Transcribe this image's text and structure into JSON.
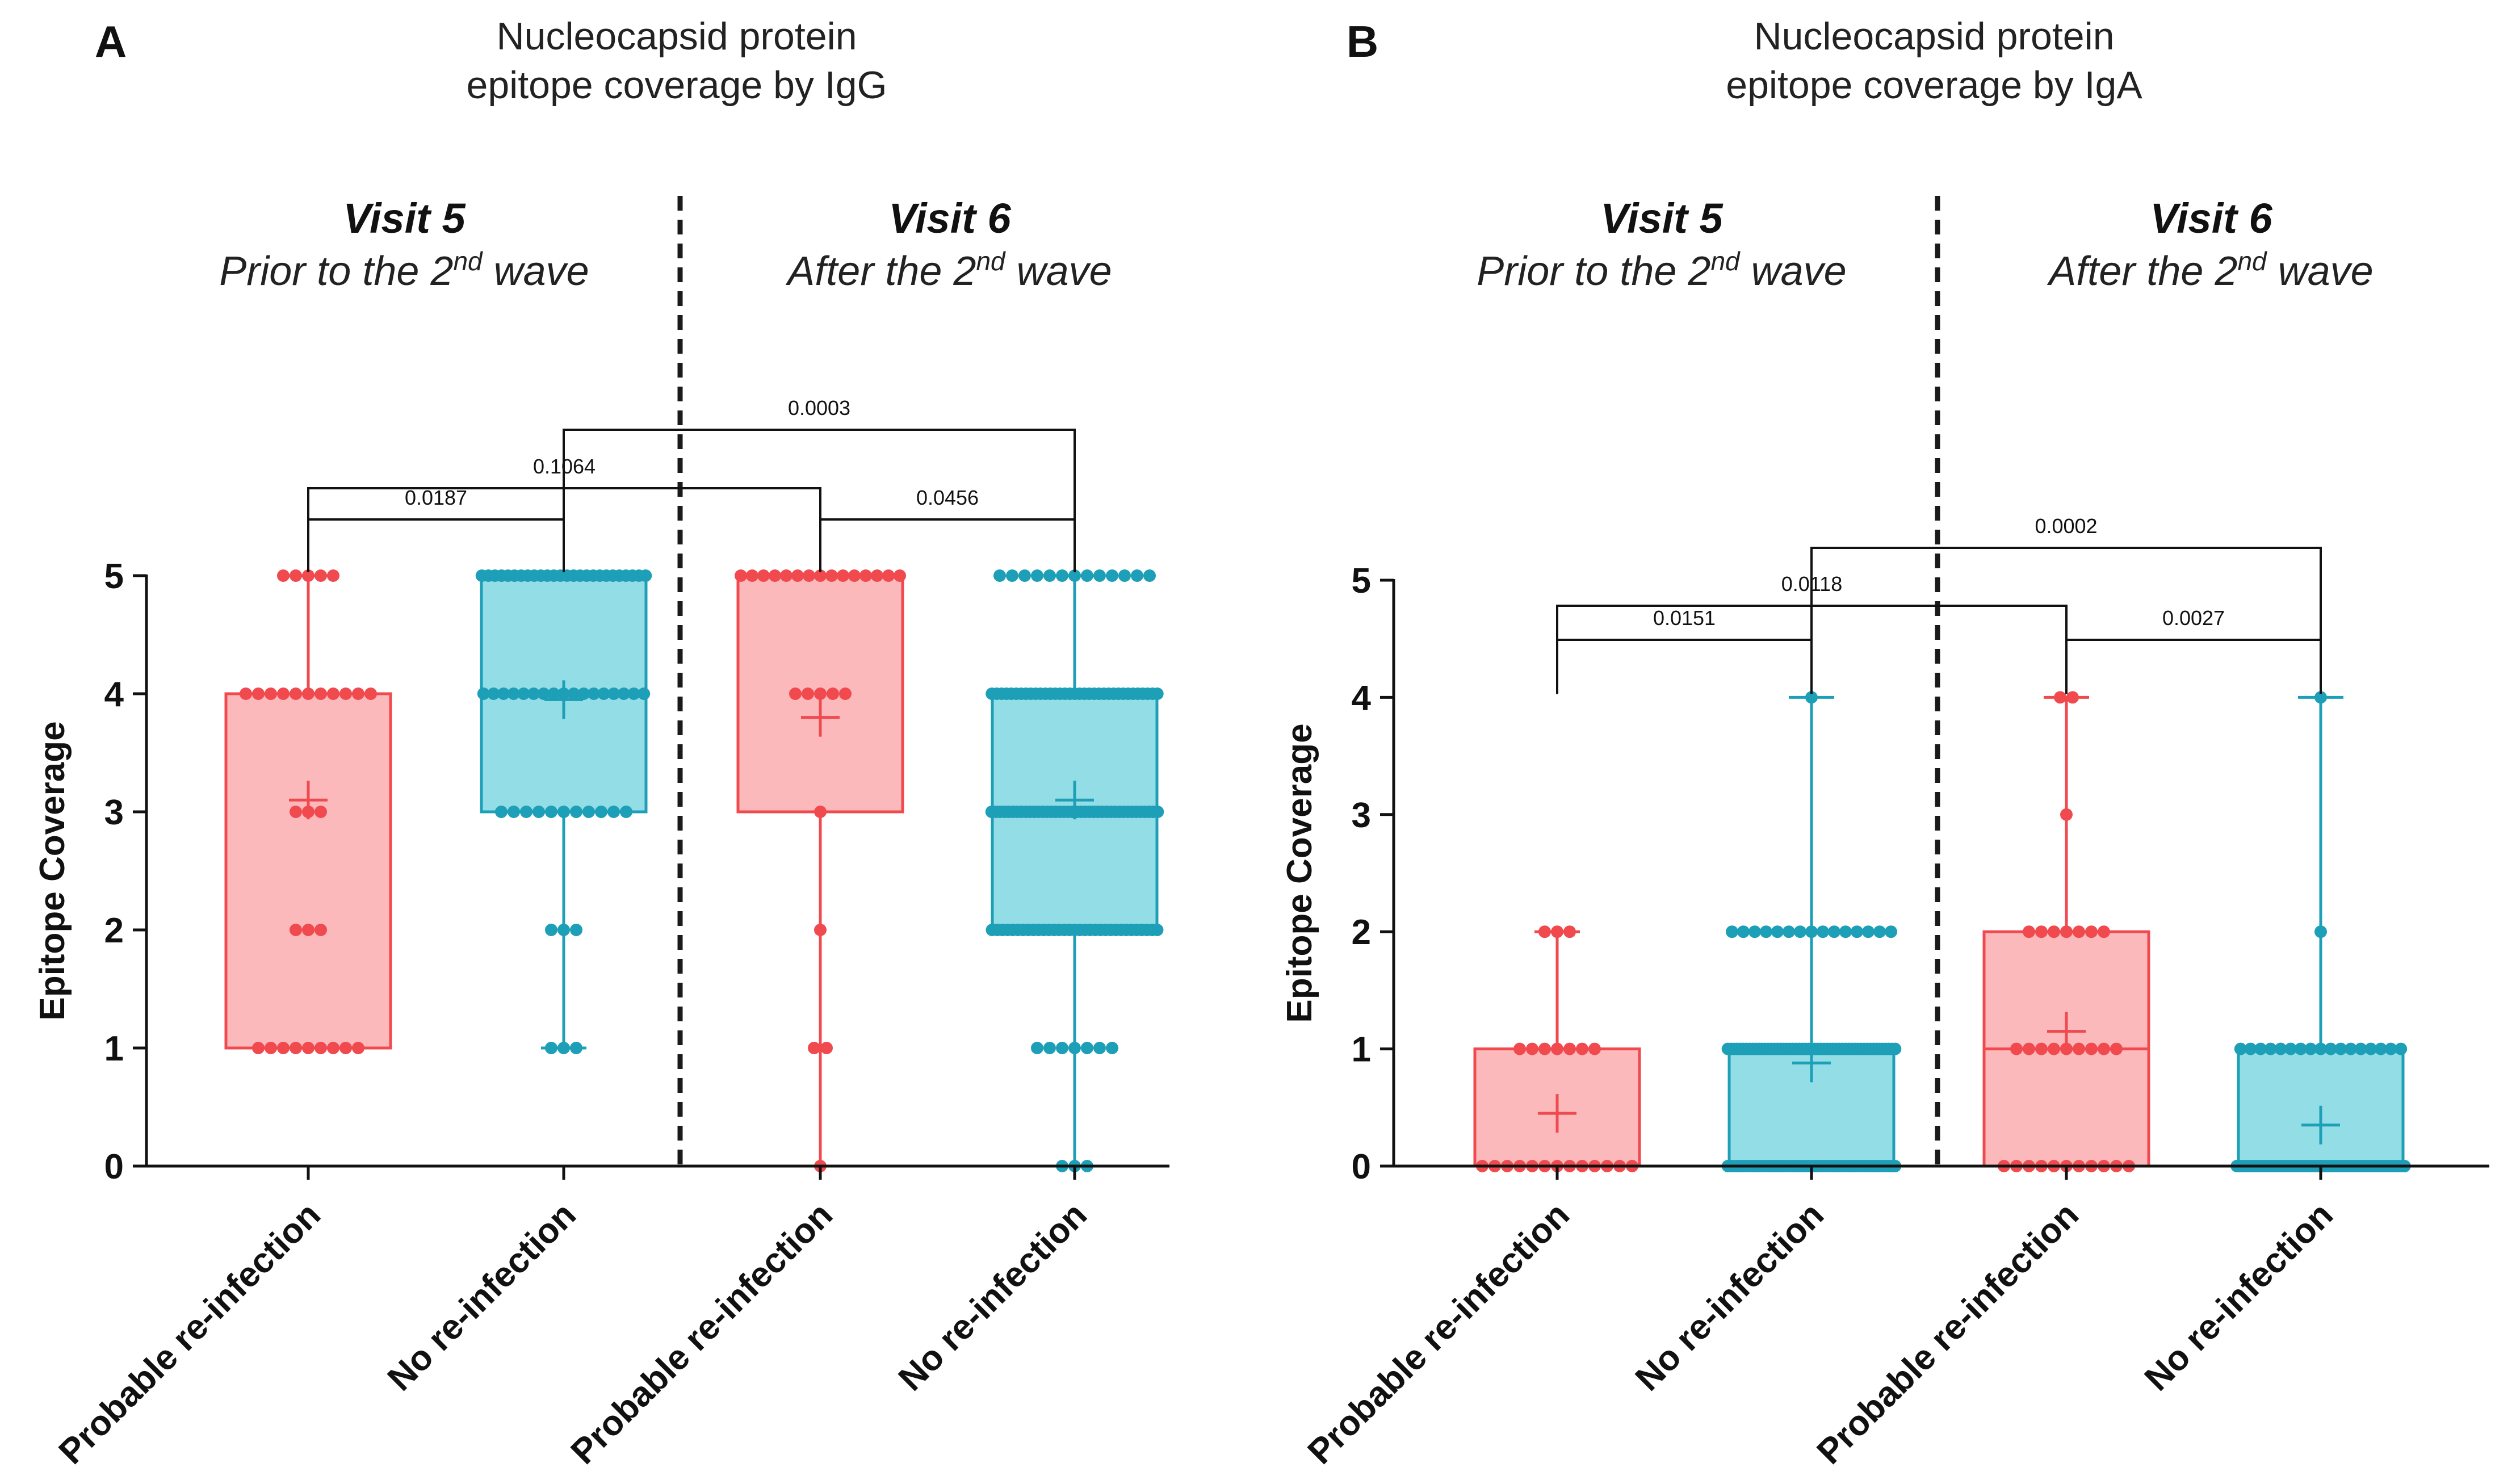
{
  "colors": {
    "probable": "#f04a4f",
    "probable_fill": "#fbb9bc",
    "none": "#1d9fb7",
    "none_fill": "#93dde6",
    "axis": "#111111"
  },
  "chart_data": [
    {
      "type": "box",
      "panel_letter": "A",
      "title_line1": "Nucleocapsid protein",
      "title_line2": "epitope coverage by IgG",
      "ylabel": "Epitope Coverage",
      "ylim": [
        0,
        5
      ],
      "yticks": [
        "0",
        "1",
        "2",
        "3",
        "4",
        "5"
      ],
      "groups": [
        {
          "title": "Visit 5",
          "subtitle_pre": "Prior to the 2",
          "subtitle_sup": "nd",
          "subtitle_post": " wave"
        },
        {
          "title": "Visit 6",
          "subtitle_pre": "After the 2",
          "subtitle_sup": "nd",
          "subtitle_post": " wave"
        }
      ],
      "categories": [
        "Probable re-infection",
        "No re-infection",
        "Probable re-infection",
        "No re-infection"
      ],
      "boxes": [
        {
          "series": "probable",
          "min": 1,
          "q1": 1,
          "median": 4,
          "q3": 4,
          "max": 5,
          "mean": 3.1,
          "points": [
            {
              "v": 5,
              "n": 5
            },
            {
              "v": 4,
              "n": 11
            },
            {
              "v": 3,
              "n": 3
            },
            {
              "v": 2,
              "n": 3
            },
            {
              "v": 1,
              "n": 9
            }
          ]
        },
        {
          "series": "none",
          "min": 1,
          "q1": 3,
          "median": 4,
          "q3": 5,
          "max": 5,
          "mean": 3.95,
          "points": [
            {
              "v": 5,
              "n": 26
            },
            {
              "v": 4,
              "n": 17
            },
            {
              "v": 3,
              "n": 11
            },
            {
              "v": 2,
              "n": 3
            },
            {
              "v": 1,
              "n": 3
            }
          ]
        },
        {
          "series": "probable",
          "min": 0,
          "q1": 3,
          "median": 5,
          "q3": 5,
          "max": 5,
          "mean": 3.8,
          "points": [
            {
              "v": 5,
              "n": 15
            },
            {
              "v": 4,
              "n": 5
            },
            {
              "v": 3,
              "n": 1
            },
            {
              "v": 2,
              "n": 1
            },
            {
              "v": 1,
              "n": 2
            },
            {
              "v": 0,
              "n": 1
            }
          ]
        },
        {
          "series": "none",
          "min": 0,
          "q1": 2,
          "median": 3,
          "q3": 4,
          "max": 5,
          "mean": 3.1,
          "points": [
            {
              "v": 5,
              "n": 13
            },
            {
              "v": 4,
              "n": 35
            },
            {
              "v": 3,
              "n": 40
            },
            {
              "v": 2,
              "n": 33
            },
            {
              "v": 1,
              "n": 7
            },
            {
              "v": 0,
              "n": 3
            }
          ]
        }
      ],
      "comparisons": [
        {
          "from": 0,
          "to": 1,
          "p": "0.0187"
        },
        {
          "from": 2,
          "to": 3,
          "p": "0.0456"
        },
        {
          "from": 0,
          "to": 2,
          "p": "0.1064"
        },
        {
          "from": 1,
          "to": 3,
          "p": "0.0003"
        }
      ]
    },
    {
      "type": "box",
      "panel_letter": "B",
      "title_line1": "Nucleocapsid protein",
      "title_line2": "epitope coverage by IgA",
      "ylabel": "Epitope Coverage",
      "ylim": [
        0,
        5
      ],
      "yticks": [
        "0",
        "1",
        "2",
        "3",
        "4",
        "5"
      ],
      "groups": [
        {
          "title": "Visit 5",
          "subtitle_pre": "Prior to the 2",
          "subtitle_sup": "nd",
          "subtitle_post": " wave"
        },
        {
          "title": "Visit 6",
          "subtitle_pre": "After the 2",
          "subtitle_sup": "nd",
          "subtitle_post": " wave"
        }
      ],
      "categories": [
        "Probable re-infection",
        "No re-infection",
        "Probable re-infection",
        "No re-infection"
      ],
      "boxes": [
        {
          "series": "probable",
          "min": 0,
          "q1": 0,
          "median": 0,
          "q3": 1,
          "max": 2,
          "mean": 0.45,
          "points": [
            {
              "v": 2,
              "n": 3
            },
            {
              "v": 1,
              "n": 7
            },
            {
              "v": 0,
              "n": 13
            }
          ]
        },
        {
          "series": "none",
          "min": 0,
          "q1": 0,
          "median": 1,
          "q3": 1,
          "max": 4,
          "mean": 0.88,
          "points": [
            {
              "v": 4,
              "n": 1
            },
            {
              "v": 2,
              "n": 15
            },
            {
              "v": 1,
              "n": 55
            },
            {
              "v": 0,
              "n": 55
            }
          ]
        },
        {
          "series": "probable",
          "min": 0,
          "q1": 0,
          "median": 1,
          "q3": 2,
          "max": 4,
          "mean": 1.15,
          "points": [
            {
              "v": 4,
              "n": 2
            },
            {
              "v": 3,
              "n": 1
            },
            {
              "v": 2,
              "n": 7
            },
            {
              "v": 1,
              "n": 9
            },
            {
              "v": 0,
              "n": 11
            }
          ]
        },
        {
          "series": "none",
          "min": 0,
          "q1": 0,
          "median": 0,
          "q3": 1,
          "max": 4,
          "mean": 0.35,
          "points": [
            {
              "v": 4,
              "n": 1
            },
            {
              "v": 2,
              "n": 1
            },
            {
              "v": 1,
              "n": 17
            },
            {
              "v": 0,
              "n": 65
            }
          ]
        }
      ],
      "comparisons": [
        {
          "from": 0,
          "to": 1,
          "p": "0.0151"
        },
        {
          "from": 2,
          "to": 3,
          "p": "0.0027"
        },
        {
          "from": 0,
          "to": 2,
          "p": "0.0118"
        },
        {
          "from": 1,
          "to": 3,
          "p": "0.0002"
        }
      ]
    }
  ]
}
